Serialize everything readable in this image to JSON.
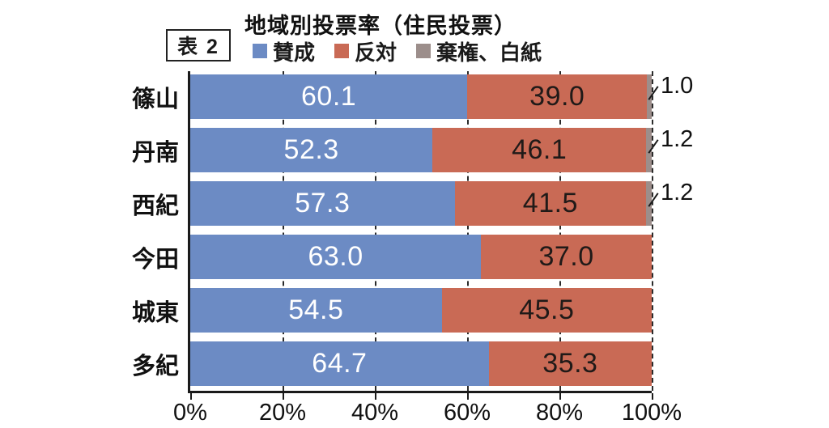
{
  "table_tag": "表 2",
  "chart_data": {
    "type": "bar",
    "stacked": true,
    "orientation": "horizontal",
    "title": "地域別投票率（住民投票）",
    "legend": [
      {
        "label": "賛成",
        "color": "#6c8bc4"
      },
      {
        "label": "反対",
        "color": "#c96a55"
      },
      {
        "label": "棄権、白紙",
        "color": "#9c8e8b"
      }
    ],
    "categories": [
      "篠山",
      "丹南",
      "西紀",
      "今田",
      "城東",
      "多紀"
    ],
    "series": [
      {
        "name": "賛成",
        "values": [
          60.1,
          52.3,
          57.3,
          63.0,
          54.5,
          64.7
        ]
      },
      {
        "name": "反対",
        "values": [
          39.0,
          46.1,
          41.5,
          37.0,
          45.5,
          35.3
        ]
      },
      {
        "name": "棄権、白紙",
        "values": [
          1.0,
          1.2,
          1.2,
          null,
          null,
          null
        ]
      }
    ],
    "value_label_colors": {
      "approve_text": "#ffffff",
      "oppose_text": "#201a18"
    },
    "x_axis": {
      "ticks": [
        "0%",
        "20%",
        "40%",
        "60%",
        "80%",
        "100%"
      ],
      "range": [
        0,
        100
      ],
      "gridlines": "dashed"
    },
    "annotations": [
      {
        "row": 0,
        "label": "1.0"
      },
      {
        "row": 1,
        "label": "1.2"
      },
      {
        "row": 2,
        "label": "1.2"
      }
    ],
    "layout": {
      "legend_position": "top",
      "axis_color": "#1a1a1a"
    }
  }
}
